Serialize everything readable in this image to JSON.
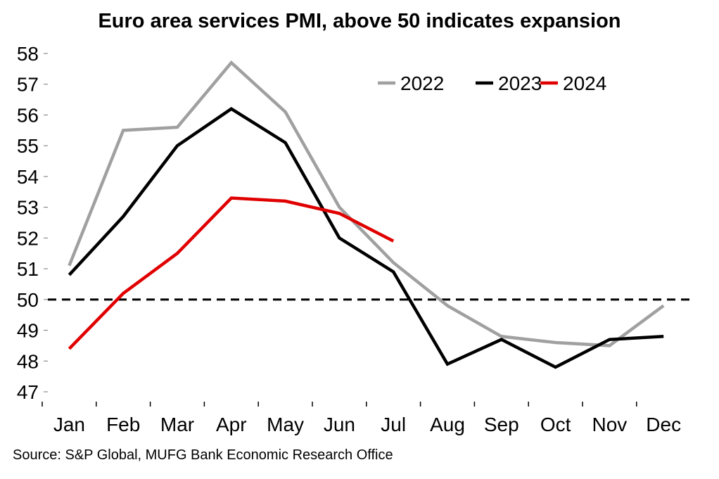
{
  "chart_data": {
    "type": "line",
    "title": "Euro area services PMI, above 50 indicates expansion",
    "xlabel": "",
    "ylabel": "",
    "categories": [
      "Jan",
      "Feb",
      "Mar",
      "Apr",
      "May",
      "Jun",
      "Jul",
      "Aug",
      "Sep",
      "Oct",
      "Nov",
      "Dec"
    ],
    "ylim": [
      47,
      58
    ],
    "yticks": [
      47,
      48,
      49,
      50,
      51,
      52,
      53,
      54,
      55,
      56,
      57,
      58
    ],
    "grid": false,
    "reference_line": {
      "value": 50,
      "style": "dashed",
      "color": "#000000"
    },
    "legend": {
      "placement": "top-right",
      "orientation": "horizontal"
    },
    "series": [
      {
        "name": "2022",
        "color": "#a0a0a0",
        "values": [
          51.1,
          55.5,
          55.6,
          57.7,
          56.1,
          53.0,
          51.2,
          49.8,
          48.8,
          48.6,
          48.5,
          49.8
        ]
      },
      {
        "name": "2023",
        "color": "#000000",
        "values": [
          50.8,
          52.7,
          55.0,
          56.2,
          55.1,
          52.0,
          50.9,
          47.9,
          48.7,
          47.8,
          48.7,
          48.8
        ]
      },
      {
        "name": "2024",
        "color": "#e00000",
        "values": [
          48.4,
          50.2,
          51.5,
          53.3,
          53.2,
          52.8,
          51.9
        ]
      }
    ]
  },
  "source": "Source: S&P Global, MUFG Bank Economic Research Office"
}
